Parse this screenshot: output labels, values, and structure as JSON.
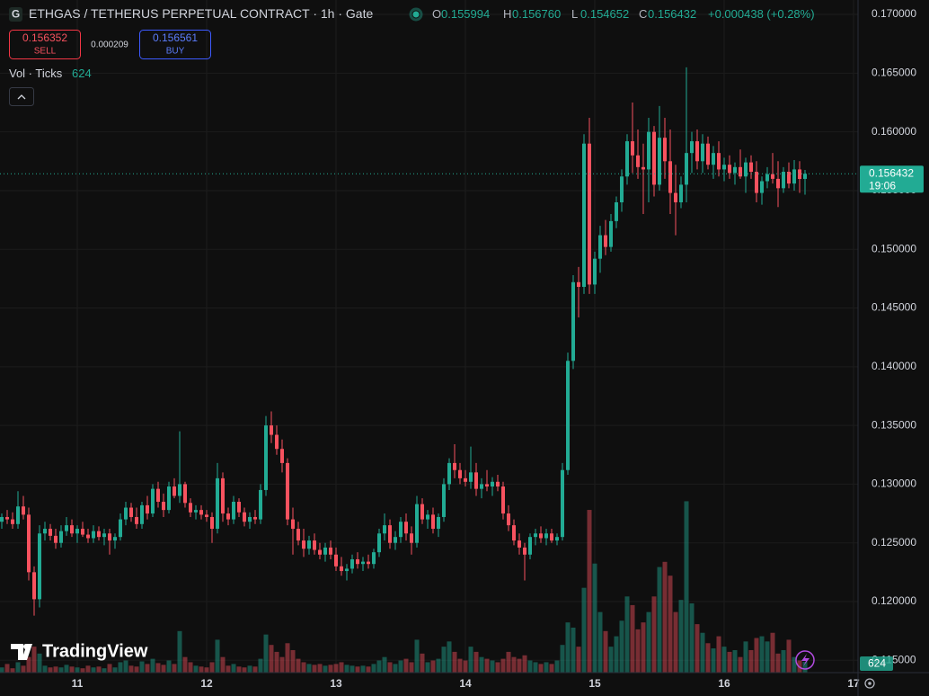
{
  "chart_data": {
    "type": "candlestick",
    "categories": [
      null,
      null,
      null,
      null,
      null,
      null,
      null,
      null,
      null,
      null,
      null,
      null,
      null,
      null,
      "11",
      null,
      null,
      null,
      null,
      null,
      null,
      null,
      null,
      null,
      null,
      null,
      null,
      null,
      null,
      null,
      null,
      null,
      null,
      null,
      null,
      null,
      null,
      null,
      "12",
      null,
      null,
      null,
      null,
      null,
      null,
      null,
      null,
      null,
      null,
      null,
      null,
      null,
      null,
      null,
      null,
      null,
      null,
      null,
      null,
      null,
      null,
      null,
      "13",
      null,
      null,
      null,
      null,
      null,
      null,
      null,
      null,
      null,
      null,
      null,
      null,
      null,
      null,
      null,
      null,
      null,
      null,
      null,
      null,
      null,
      null,
      null,
      "14",
      null,
      null,
      null,
      null,
      null,
      null,
      null,
      null,
      null,
      null,
      null,
      null,
      null,
      null,
      null,
      null,
      null,
      null,
      null,
      null,
      null,
      null,
      null,
      "15",
      null,
      null,
      null,
      null,
      null,
      null,
      null,
      null,
      null,
      null,
      null,
      null,
      null,
      null,
      null,
      null,
      null,
      null,
      null,
      null,
      null,
      null,
      null,
      "16",
      null,
      null,
      null,
      null,
      null,
      null,
      null,
      null,
      null,
      null,
      null,
      null,
      null,
      null,
      null,
      null,
      null,
      null,
      null,
      null,
      null,
      null,
      null,
      "17"
    ],
    "open": [
      0.1268,
      0.1272,
      0.127,
      0.1266,
      0.1281,
      0.1274,
      0.1225,
      0.1202,
      0.1258,
      0.1262,
      0.1256,
      0.125,
      0.126,
      0.1265,
      0.1258,
      0.1262,
      0.1257,
      0.1254,
      0.126,
      0.1255,
      0.1258,
      0.1252,
      0.1255,
      0.127,
      0.128,
      0.1272,
      0.1266,
      0.1282,
      0.1275,
      0.1296,
      0.1285,
      0.1278,
      0.1298,
      0.129,
      0.13,
      0.1284,
      0.1276,
      0.1278,
      0.1274,
      0.1272,
      0.1262,
      0.1305,
      0.1275,
      0.127,
      0.1285,
      0.1276,
      0.1268,
      0.1272,
      0.127,
      0.1295,
      0.135,
      0.1342,
      0.133,
      0.1318,
      0.127,
      0.1262,
      0.1252,
      0.1245,
      0.1252,
      0.1244,
      0.124,
      0.1246,
      0.124,
      0.123,
      0.1226,
      0.1228,
      0.1236,
      0.1232,
      0.1234,
      0.1232,
      0.1242,
      0.1258,
      0.1265,
      0.125,
      0.1255,
      0.1268,
      0.1258,
      0.125,
      0.1283,
      0.127,
      0.1274,
      0.1262,
      0.1272,
      0.13,
      0.1318,
      0.1312,
      0.1305,
      0.1302,
      0.131,
      0.1296,
      0.13,
      0.1298,
      0.1302,
      0.1298,
      0.1275,
      0.1265,
      0.1252,
      0.1246,
      0.124,
      0.1255,
      0.1258,
      0.1254,
      0.1258,
      0.1252,
      0.1255,
      0.1312,
      0.1405,
      0.1472,
      0.1468,
      0.159,
      0.147,
      0.1492,
      0.1512,
      0.1502,
      0.1524,
      0.154,
      0.1562,
      0.1592,
      0.158,
      0.157,
      0.1568,
      0.16,
      0.1555,
      0.1595,
      0.1575,
      0.1548,
      0.154,
      0.1555,
      0.1582,
      0.1592,
      0.1575,
      0.159,
      0.1572,
      0.1582,
      0.1568,
      0.1572,
      0.1565,
      0.157,
      0.1562,
      0.1574,
      0.1566,
      0.1548,
      0.1558,
      0.1564,
      0.156,
      0.1552,
      0.1566,
      0.1556,
      0.1568,
      0.155994,
      null,
      null,
      null,
      null,
      null,
      null,
      null,
      null,
      null
    ],
    "high": [
      0.1275,
      0.1278,
      0.1276,
      0.1294,
      0.129,
      0.128,
      0.123,
      0.1265,
      0.1268,
      0.1266,
      0.1262,
      0.1265,
      0.1272,
      0.127,
      0.1265,
      0.1268,
      0.1262,
      0.1265,
      0.1264,
      0.1262,
      0.1262,
      0.1258,
      0.1275,
      0.1285,
      0.1284,
      0.128,
      0.1285,
      0.129,
      0.13,
      0.1302,
      0.1292,
      0.1302,
      0.1305,
      0.1345,
      0.1302,
      0.1288,
      0.1282,
      0.1282,
      0.1278,
      0.1276,
      0.1318,
      0.131,
      0.128,
      0.129,
      0.1288,
      0.128,
      0.1276,
      0.1278,
      0.13,
      0.1358,
      0.1362,
      0.135,
      0.1338,
      0.1322,
      0.128,
      0.1268,
      0.1262,
      0.1256,
      0.1258,
      0.125,
      0.125,
      0.1252,
      0.1246,
      0.1238,
      0.1232,
      0.124,
      0.1242,
      0.1238,
      0.124,
      0.1245,
      0.1262,
      0.1275,
      0.127,
      0.126,
      0.1272,
      0.1275,
      0.1264,
      0.129,
      0.1288,
      0.1278,
      0.128,
      0.1275,
      0.1305,
      0.1322,
      0.1334,
      0.1318,
      0.1312,
      0.1332,
      0.1318,
      0.1305,
      0.1312,
      0.1306,
      0.1308,
      0.1302,
      0.1282,
      0.127,
      0.1258,
      0.125,
      0.1258,
      0.1262,
      0.1264,
      0.1262,
      0.1262,
      0.1258,
      0.1318,
      0.1412,
      0.1478,
      0.1485,
      0.1598,
      0.1612,
      0.1498,
      0.152,
      0.1525,
      0.153,
      0.1545,
      0.1568,
      0.1598,
      0.1625,
      0.1602,
      0.159,
      0.1612,
      0.1605,
      0.1622,
      0.1612,
      0.1602,
      0.1572,
      0.1562,
      0.1655,
      0.16,
      0.1602,
      0.1598,
      0.1596,
      0.1588,
      0.1592,
      0.1578,
      0.158,
      0.1574,
      0.1585,
      0.1578,
      0.158,
      0.1575,
      0.1562,
      0.157,
      0.1582,
      0.1575,
      0.157,
      0.1574,
      0.1576,
      0.1575,
      0.15676,
      null,
      null,
      null,
      null,
      null,
      null,
      null,
      null,
      null
    ],
    "low": [
      0.1262,
      0.1266,
      0.1262,
      0.1262,
      0.127,
      0.1218,
      0.1188,
      0.1195,
      0.1252,
      0.1252,
      0.1245,
      0.1246,
      0.1256,
      0.1255,
      0.125,
      0.1255,
      0.125,
      0.125,
      0.1252,
      0.1248,
      0.124,
      0.1245,
      0.1252,
      0.1265,
      0.1268,
      0.1262,
      0.1262,
      0.127,
      0.1272,
      0.128,
      0.1272,
      0.1275,
      0.1288,
      0.1284,
      0.128,
      0.1272,
      0.127,
      0.127,
      0.1268,
      0.125,
      0.1258,
      0.1268,
      0.1265,
      0.1266,
      0.1272,
      0.1264,
      0.1262,
      0.1266,
      0.1266,
      0.129,
      0.1335,
      0.1325,
      0.131,
      0.1265,
      0.124,
      0.1248,
      0.1238,
      0.124,
      0.124,
      0.1236,
      0.1234,
      0.1236,
      0.1226,
      0.1222,
      0.1218,
      0.1224,
      0.1228,
      0.1226,
      0.1228,
      0.1228,
      0.1238,
      0.1252,
      0.1245,
      0.1244,
      0.125,
      0.1252,
      0.124,
      0.1246,
      0.1266,
      0.1262,
      0.1258,
      0.1255,
      0.1268,
      0.1295,
      0.1305,
      0.13,
      0.1298,
      0.1296,
      0.129,
      0.1288,
      0.1294,
      0.129,
      0.1294,
      0.127,
      0.126,
      0.1248,
      0.124,
      0.1218,
      0.1236,
      0.1248,
      0.125,
      0.1248,
      0.125,
      0.1248,
      0.1252,
      0.1308,
      0.1398,
      0.1442,
      0.1462,
      0.1462,
      0.1462,
      0.148,
      0.1495,
      0.1498,
      0.1518,
      0.1532,
      0.1555,
      0.1565,
      0.156,
      0.153,
      0.154,
      0.1545,
      0.155,
      0.156,
      0.153,
      0.1512,
      0.1535,
      0.154,
      0.1565,
      0.1568,
      0.1565,
      0.1568,
      0.156,
      0.1562,
      0.1558,
      0.156,
      0.1555,
      0.156,
      0.1548,
      0.156,
      0.154,
      0.1538,
      0.1552,
      0.1556,
      0.1536,
      0.1548,
      0.1552,
      0.155,
      0.1548,
      0.154652,
      null,
      null,
      null,
      null,
      null,
      null,
      null,
      null,
      null
    ],
    "close": [
      0.1272,
      0.127,
      0.1266,
      0.1281,
      0.1274,
      0.1225,
      0.1202,
      0.1258,
      0.1262,
      0.1256,
      0.125,
      0.126,
      0.1265,
      0.1258,
      0.1262,
      0.1257,
      0.1254,
      0.126,
      0.1255,
      0.1258,
      0.1252,
      0.1255,
      0.127,
      0.128,
      0.1272,
      0.1266,
      0.1282,
      0.1275,
      0.1296,
      0.1285,
      0.1278,
      0.1298,
      0.129,
      0.13,
      0.1284,
      0.1276,
      0.1278,
      0.1274,
      0.1272,
      0.1262,
      0.1305,
      0.1275,
      0.127,
      0.1285,
      0.1276,
      0.1268,
      0.1272,
      0.127,
      0.1295,
      0.135,
      0.1342,
      0.133,
      0.1318,
      0.127,
      0.1262,
      0.1252,
      0.1245,
      0.1252,
      0.1244,
      0.124,
      0.1246,
      0.124,
      0.123,
      0.1226,
      0.1228,
      0.1236,
      0.1232,
      0.1234,
      0.1232,
      0.1242,
      0.1258,
      0.1265,
      0.125,
      0.1255,
      0.1268,
      0.1258,
      0.125,
      0.1283,
      0.127,
      0.1274,
      0.1262,
      0.1272,
      0.13,
      0.1318,
      0.1312,
      0.1305,
      0.1302,
      0.131,
      0.1296,
      0.13,
      0.1298,
      0.1302,
      0.1298,
      0.1275,
      0.1265,
      0.1252,
      0.1246,
      0.124,
      0.1255,
      0.1258,
      0.1254,
      0.1258,
      0.1252,
      0.1255,
      0.1312,
      0.1405,
      0.1472,
      0.1468,
      0.159,
      0.147,
      0.1492,
      0.1512,
      0.1502,
      0.1524,
      0.154,
      0.1562,
      0.1592,
      0.158,
      0.157,
      0.1568,
      0.16,
      0.1555,
      0.1595,
      0.1575,
      0.1548,
      0.154,
      0.1555,
      0.1582,
      0.1592,
      0.1575,
      0.159,
      0.1572,
      0.1582,
      0.1568,
      0.1572,
      0.1565,
      0.157,
      0.1562,
      0.1574,
      0.1566,
      0.1548,
      0.1558,
      0.1564,
      0.156,
      0.1552,
      0.1566,
      0.1556,
      0.1568,
      0.15599,
      0.156432,
      null,
      null,
      null,
      null,
      null,
      null,
      null,
      null,
      null
    ],
    "volume": [
      300,
      500,
      250,
      600,
      400,
      900,
      1500,
      1100,
      400,
      300,
      350,
      300,
      450,
      350,
      300,
      250,
      400,
      300,
      350,
      250,
      500,
      300,
      600,
      700,
      400,
      350,
      650,
      500,
      800,
      550,
      450,
      700,
      500,
      2400,
      900,
      600,
      400,
      350,
      300,
      600,
      1900,
      900,
      400,
      500,
      350,
      300,
      400,
      350,
      800,
      2200,
      1600,
      1200,
      900,
      1700,
      1300,
      800,
      600,
      500,
      450,
      500,
      400,
      450,
      500,
      600,
      450,
      400,
      350,
      400,
      350,
      500,
      700,
      900,
      600,
      500,
      700,
      800,
      600,
      1900,
      1100,
      600,
      700,
      800,
      1500,
      1800,
      1200,
      800,
      700,
      1500,
      1200,
      900,
      800,
      700,
      600,
      800,
      1200,
      900,
      800,
      1000,
      700,
      600,
      500,
      600,
      500,
      700,
      1600,
      2900,
      2600,
      1500,
      4900,
      9400,
      6300,
      3500,
      2400,
      1500,
      2100,
      3000,
      4400,
      3900,
      2500,
      2900,
      3500,
      4400,
      6100,
      6400,
      5600,
      3500,
      4200,
      9900,
      4000,
      2800,
      2300,
      1700,
      1400,
      2100,
      1500,
      1200,
      1300,
      900,
      1800,
      1300,
      2000,
      2100,
      1800,
      2300,
      1100,
      1300,
      1900,
      900,
      700,
      624,
      null,
      null,
      null,
      null,
      null,
      null,
      null,
      null,
      null
    ],
    "up_color": "#22ab94",
    "down_color": "#f7525f",
    "ylim": [
      0.11395,
      0.17123
    ],
    "yticks": [
      {
        "value": 0.17,
        "label": "0.170000"
      },
      {
        "value": 0.165,
        "label": "0.165000"
      },
      {
        "value": 0.16,
        "label": "0.160000"
      },
      {
        "value": 0.155,
        "label": "0.155000"
      },
      {
        "value": 0.15,
        "label": "0.150000"
      },
      {
        "value": 0.145,
        "label": "0.145000"
      },
      {
        "value": 0.14,
        "label": "0.140000"
      },
      {
        "value": 0.135,
        "label": "0.135000"
      },
      {
        "value": 0.13,
        "label": "0.130000"
      },
      {
        "value": 0.125,
        "label": "0.125000"
      },
      {
        "value": 0.12,
        "label": "0.120000"
      },
      {
        "value": 0.115,
        "label": "0.115000"
      }
    ],
    "volume_ylim": [
      0,
      12000
    ],
    "grid": true
  },
  "header": {
    "icon": "G",
    "symbol": "ETHGAS / TETHERUS PERPETUAL CONTRACT · 1h · Gate",
    "ohlc": [
      {
        "key": "O",
        "value": "0.155994"
      },
      {
        "key": "H",
        "value": "0.156760"
      },
      {
        "key": "L",
        "value": "0.154652"
      },
      {
        "key": "C",
        "value": "0.156432"
      }
    ],
    "change": "+0.000438 (+0.28%)",
    "sell_price": "0.156352",
    "sell_label": "SELL",
    "spread": "0.000209",
    "buy_price": "0.156561",
    "buy_label": "BUY",
    "volume_label": "Vol · Ticks",
    "volume_value": "624"
  },
  "price_tag": {
    "price": "0.156432",
    "countdown": "19:06",
    "volume": "624"
  },
  "logo": "TradingView"
}
